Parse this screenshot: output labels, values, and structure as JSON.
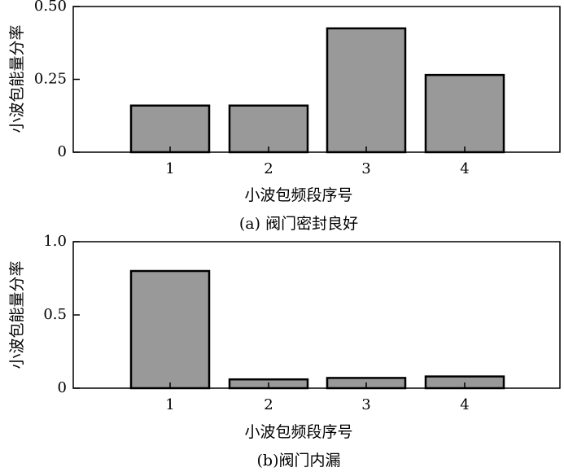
{
  "chart_data": [
    {
      "type": "bar",
      "categories": [
        "1",
        "2",
        "3",
        "4"
      ],
      "values": [
        0.16,
        0.16,
        0.425,
        0.265
      ],
      "xlabel": "小波包频段序号",
      "ylabel": "小波包能量分率",
      "caption": "(a) 阀门密封良好",
      "ylim": [
        0,
        0.5
      ],
      "yticks": [
        "0",
        "0.25",
        "0.50"
      ],
      "ytick_values": [
        0,
        0.25,
        0.5
      ],
      "bar_color": "#999999",
      "grid": false
    },
    {
      "type": "bar",
      "categories": [
        "1",
        "2",
        "3",
        "4"
      ],
      "values": [
        0.8,
        0.06,
        0.07,
        0.08
      ],
      "xlabel": "小波包频段序号",
      "ylabel": "小波包能量分率",
      "caption": "(b)阀门内漏",
      "ylim": [
        0,
        1.0
      ],
      "yticks": [
        "0",
        "0.5",
        "1.0"
      ],
      "ytick_values": [
        0,
        0.5,
        1.0
      ],
      "bar_color": "#999999",
      "grid": false
    }
  ]
}
